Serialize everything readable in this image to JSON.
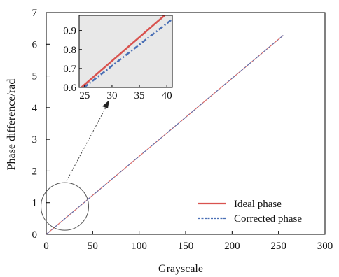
{
  "chart_data": [
    {
      "type": "line",
      "xlabel": "Grayscale",
      "ylabel": "Phase difference/rad",
      "xlim": [
        0,
        300
      ],
      "ylim": [
        0,
        7
      ],
      "xticks": [
        0,
        50,
        100,
        150,
        200,
        250,
        300
      ],
      "yticks": [
        0,
        1,
        2,
        3,
        4,
        5,
        6,
        7
      ],
      "grid": false,
      "legend_position": "bottom-right",
      "series": [
        {
          "name": "Ideal phase",
          "color": "#d9534f",
          "style": "solid",
          "x": [
            0,
            255
          ],
          "y": [
            0,
            6.28
          ]
        },
        {
          "name": "Corrected phase",
          "color": "#4a6fb5",
          "style": "dash-dot",
          "x": [
            0,
            255
          ],
          "y": [
            0,
            6.28
          ]
        }
      ]
    },
    {
      "type": "line",
      "xlim": [
        24,
        41
      ],
      "ylim": [
        0.6,
        0.98
      ],
      "xticks": [
        25,
        30,
        35,
        40
      ],
      "yticks": [
        0.6,
        0.7,
        0.8,
        0.9
      ],
      "background": "#e8e8e8",
      "series": [
        {
          "name": "Ideal phase",
          "color": "#d9534f",
          "style": "solid",
          "x": [
            24.4,
            39.6
          ],
          "y": [
            0.6,
            0.98
          ]
        },
        {
          "name": "Corrected phase",
          "color": "#4a6fb5",
          "style": "dash-dot",
          "x": [
            24.9,
            41.0
          ],
          "y": [
            0.6,
            0.96
          ]
        }
      ]
    }
  ]
}
